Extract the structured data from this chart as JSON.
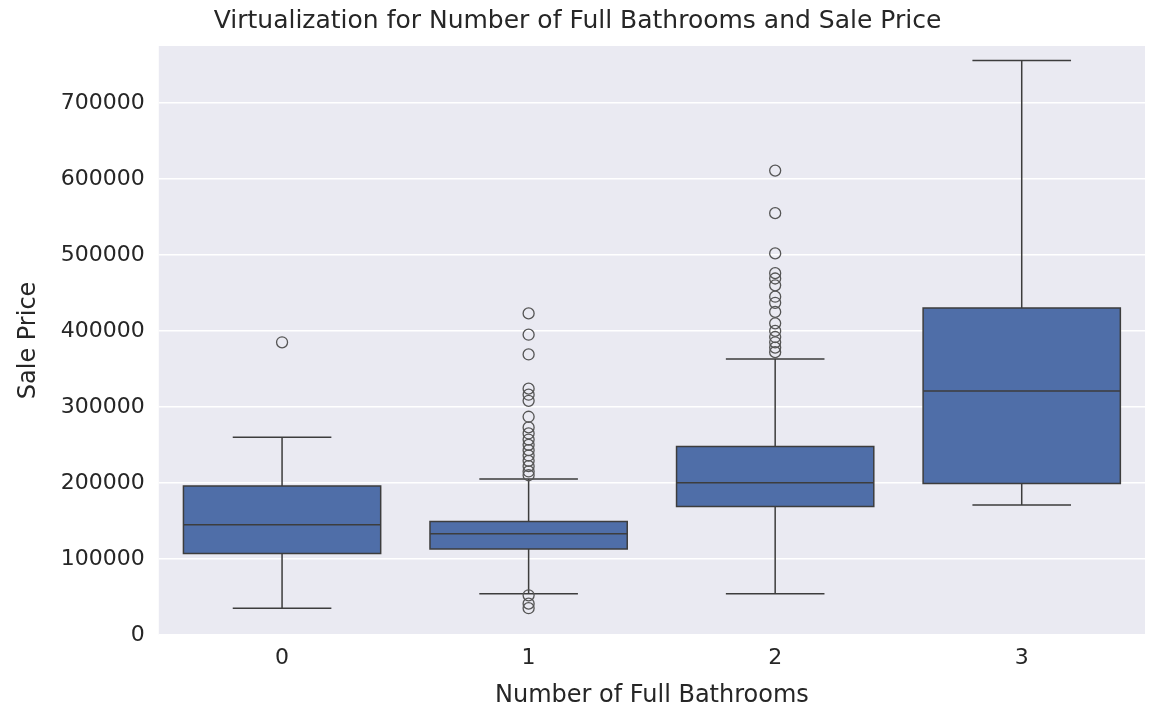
{
  "chart_data": {
    "type": "box",
    "title": "Virtualization for Number of Full Bathrooms and Sale Price",
    "xlabel": "Number of Full Bathrooms",
    "ylabel": "Sale Price",
    "categories": [
      "0",
      "1",
      "2",
      "3"
    ],
    "series": [
      {
        "color": "#4f6ea8",
        "boxes": [
          {
            "low": 35000,
            "q1": 107000,
            "median": 145000,
            "q3": 196000,
            "high": 260000,
            "outliers": [
              385000
            ]
          },
          {
            "low": 54000,
            "q1": 113000,
            "median": 133000,
            "q3": 149000,
            "high": 205000,
            "outliers": [
              423000,
              395000,
              369000,
              324000,
              316000,
              308000,
              287000,
              273000,
              265000,
              257000,
              250000,
              243000,
              236000,
              229000,
              222000,
              215000,
              210000,
              52000,
              41000,
              35000
            ]
          },
          {
            "low": 54000,
            "q1": 169000,
            "median": 200000,
            "q3": 248000,
            "high": 363000,
            "outliers": [
              611000,
              555000,
              502000,
              476000,
              469000,
              460000,
              445000,
              437000,
              425000,
              410000,
              400000,
              392000,
              385000,
              378000,
              372000
            ]
          },
          {
            "low": 171000,
            "q1": 199000,
            "median": 321000,
            "q3": 430000,
            "high": 756000
          }
        ]
      }
    ],
    "ylim": [
      0,
      775000
    ],
    "yticks": [
      0,
      100000,
      200000,
      300000,
      400000,
      500000,
      600000,
      700000
    ],
    "grid": "y",
    "marker": "circle"
  }
}
